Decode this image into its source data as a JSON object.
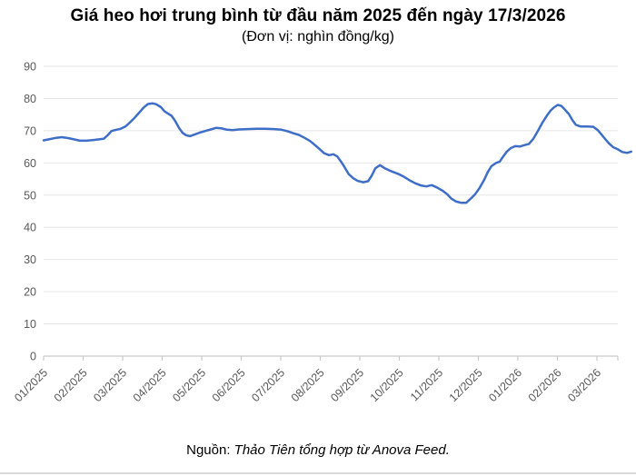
{
  "page": {
    "title": "Giá heo hơi trung bình từ đầu năm 2025 đến ngày 17/3/2026",
    "subtitle": "(Đơn vị: nghìn đồng/kg)",
    "source_label": "Nguồn:",
    "source_text": "Thảo Tiên tổng hợp từ Anova Feed."
  },
  "chart_data": {
    "type": "line",
    "title": "Giá heo hơi trung bình từ đầu năm 2025 đến ngày 17/3/2026",
    "subtitle": "(Đơn vị: nghìn đồng/kg)",
    "ylabel": "nghìn đồng/kg",
    "xlabel": "",
    "ylim": [
      0,
      90
    ],
    "y_ticks": [
      0,
      10,
      20,
      30,
      40,
      50,
      60,
      70,
      80,
      90
    ],
    "x_tick_labels": [
      "01/2025",
      "02/2025",
      "03/2025",
      "04/2025",
      "05/2025",
      "06/2025",
      "07/2025",
      "08/2025",
      "09/2025",
      "10/2025",
      "11/2025",
      "12/2025",
      "01/2026",
      "02/2026",
      "03/2026"
    ],
    "x_unit": "months_from_2025_01_01",
    "grid": true,
    "legend": false,
    "line_color": "#3e6ec8",
    "grid_color": "#e6e6e6",
    "axis_color": "#c9c9c9",
    "tick_label_color": "#595959",
    "series": [
      {
        "name": "Giá heo hơi trung bình",
        "points": [
          [
            0.0,
            67.0
          ],
          [
            0.16,
            67.4
          ],
          [
            0.32,
            67.8
          ],
          [
            0.46,
            68.0
          ],
          [
            0.62,
            67.7
          ],
          [
            0.78,
            67.3
          ],
          [
            0.92,
            66.9
          ],
          [
            1.08,
            66.9
          ],
          [
            1.24,
            67.1
          ],
          [
            1.38,
            67.3
          ],
          [
            1.52,
            67.5
          ],
          [
            1.63,
            68.7
          ],
          [
            1.72,
            69.9
          ],
          [
            1.84,
            70.3
          ],
          [
            1.95,
            70.6
          ],
          [
            2.07,
            71.3
          ],
          [
            2.18,
            72.5
          ],
          [
            2.3,
            74.0
          ],
          [
            2.41,
            75.5
          ],
          [
            2.53,
            77.2
          ],
          [
            2.64,
            78.3
          ],
          [
            2.76,
            78.5
          ],
          [
            2.85,
            78.2
          ],
          [
            2.97,
            77.3
          ],
          [
            3.06,
            76.0
          ],
          [
            3.15,
            75.3
          ],
          [
            3.24,
            74.6
          ],
          [
            3.33,
            73.0
          ],
          [
            3.43,
            70.8
          ],
          [
            3.52,
            69.3
          ],
          [
            3.61,
            68.6
          ],
          [
            3.7,
            68.3
          ],
          [
            3.82,
            68.8
          ],
          [
            3.95,
            69.4
          ],
          [
            4.09,
            69.9
          ],
          [
            4.23,
            70.4
          ],
          [
            4.37,
            70.9
          ],
          [
            4.51,
            70.7
          ],
          [
            4.64,
            70.3
          ],
          [
            4.78,
            70.2
          ],
          [
            4.94,
            70.4
          ],
          [
            5.15,
            70.5
          ],
          [
            5.38,
            70.6
          ],
          [
            5.61,
            70.6
          ],
          [
            5.84,
            70.5
          ],
          [
            6.02,
            70.3
          ],
          [
            6.18,
            69.8
          ],
          [
            6.32,
            69.2
          ],
          [
            6.46,
            68.7
          ],
          [
            6.6,
            67.8
          ],
          [
            6.74,
            66.8
          ],
          [
            6.87,
            65.5
          ],
          [
            6.99,
            64.2
          ],
          [
            7.1,
            63.0
          ],
          [
            7.22,
            62.4
          ],
          [
            7.33,
            62.7
          ],
          [
            7.43,
            62.0
          ],
          [
            7.52,
            60.5
          ],
          [
            7.61,
            58.8
          ],
          [
            7.72,
            56.5
          ],
          [
            7.84,
            55.2
          ],
          [
            7.95,
            54.4
          ],
          [
            8.09,
            54.0
          ],
          [
            8.21,
            54.3
          ],
          [
            8.3,
            56.0
          ],
          [
            8.39,
            58.3
          ],
          [
            8.51,
            59.3
          ],
          [
            8.64,
            58.3
          ],
          [
            8.8,
            57.4
          ],
          [
            8.97,
            56.6
          ],
          [
            9.13,
            55.6
          ],
          [
            9.26,
            54.6
          ],
          [
            9.4,
            53.7
          ],
          [
            9.54,
            53.0
          ],
          [
            9.68,
            52.7
          ],
          [
            9.82,
            53.1
          ],
          [
            9.95,
            52.4
          ],
          [
            10.09,
            51.4
          ],
          [
            10.21,
            50.3
          ],
          [
            10.32,
            48.9
          ],
          [
            10.44,
            48.0
          ],
          [
            10.57,
            47.6
          ],
          [
            10.69,
            47.6
          ],
          [
            10.8,
            48.8
          ],
          [
            10.92,
            50.3
          ],
          [
            11.03,
            52.2
          ],
          [
            11.15,
            54.8
          ],
          [
            11.24,
            57.2
          ],
          [
            11.33,
            59.0
          ],
          [
            11.45,
            60.0
          ],
          [
            11.54,
            60.4
          ],
          [
            11.63,
            62.0
          ],
          [
            11.72,
            63.5
          ],
          [
            11.82,
            64.6
          ],
          [
            11.93,
            65.2
          ],
          [
            12.05,
            65.1
          ],
          [
            12.16,
            65.5
          ],
          [
            12.28,
            65.9
          ],
          [
            12.39,
            67.5
          ],
          [
            12.51,
            70.0
          ],
          [
            12.62,
            72.5
          ],
          [
            12.74,
            74.8
          ],
          [
            12.83,
            76.3
          ],
          [
            12.92,
            77.3
          ],
          [
            13.01,
            78.0
          ],
          [
            13.1,
            77.7
          ],
          [
            13.2,
            76.4
          ],
          [
            13.29,
            75.2
          ],
          [
            13.38,
            73.3
          ],
          [
            13.47,
            71.8
          ],
          [
            13.59,
            71.3
          ],
          [
            13.75,
            71.3
          ],
          [
            13.91,
            71.2
          ],
          [
            14.02,
            70.2
          ],
          [
            14.11,
            68.9
          ],
          [
            14.21,
            67.4
          ],
          [
            14.3,
            66.1
          ],
          [
            14.41,
            64.9
          ],
          [
            14.53,
            64.2
          ],
          [
            14.64,
            63.4
          ],
          [
            14.76,
            63.1
          ],
          [
            14.87,
            63.5
          ]
        ]
      }
    ]
  }
}
